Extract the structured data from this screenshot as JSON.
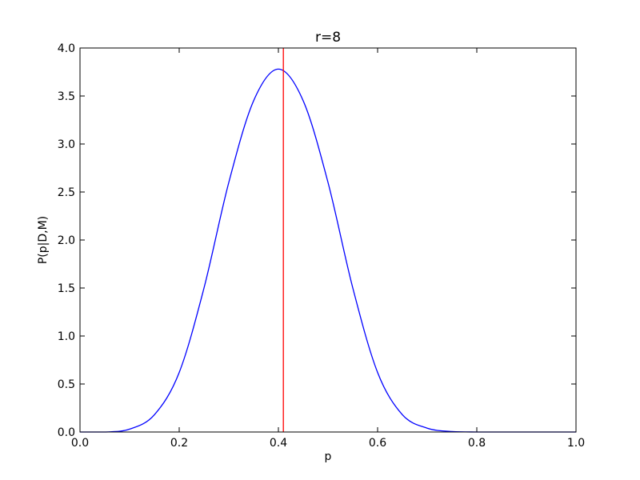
{
  "chart_data": {
    "type": "line",
    "title": "r=8",
    "xlabel": "p",
    "ylabel": "P(p|D,M)",
    "xlim": [
      0.0,
      1.0
    ],
    "ylim": [
      0.0,
      4.0
    ],
    "xticks": [
      "0.0",
      "0.2",
      "0.4",
      "0.6",
      "0.8",
      "1.0"
    ],
    "yticks": [
      "0.0",
      "0.5",
      "1.0",
      "1.5",
      "2.0",
      "2.5",
      "3.0",
      "3.5",
      "4.0"
    ],
    "grid": false,
    "series": [
      {
        "color": "#0000ff",
        "x": [
          0.0,
          0.05,
          0.1,
          0.15,
          0.2,
          0.25,
          0.3,
          0.35,
          0.4,
          0.45,
          0.5,
          0.55,
          0.6,
          0.65,
          0.7,
          0.75,
          0.8,
          0.85,
          0.9,
          0.95,
          1.0
        ],
        "y": [
          0.0,
          0.0,
          0.03,
          0.18,
          0.62,
          1.5,
          2.6,
          3.45,
          3.78,
          3.45,
          2.6,
          1.5,
          0.62,
          0.18,
          0.04,
          0.005,
          0.0,
          0.0,
          0.0,
          0.0,
          0.0
        ]
      }
    ],
    "vline": {
      "x": 0.41,
      "color": "#ff0000"
    }
  }
}
